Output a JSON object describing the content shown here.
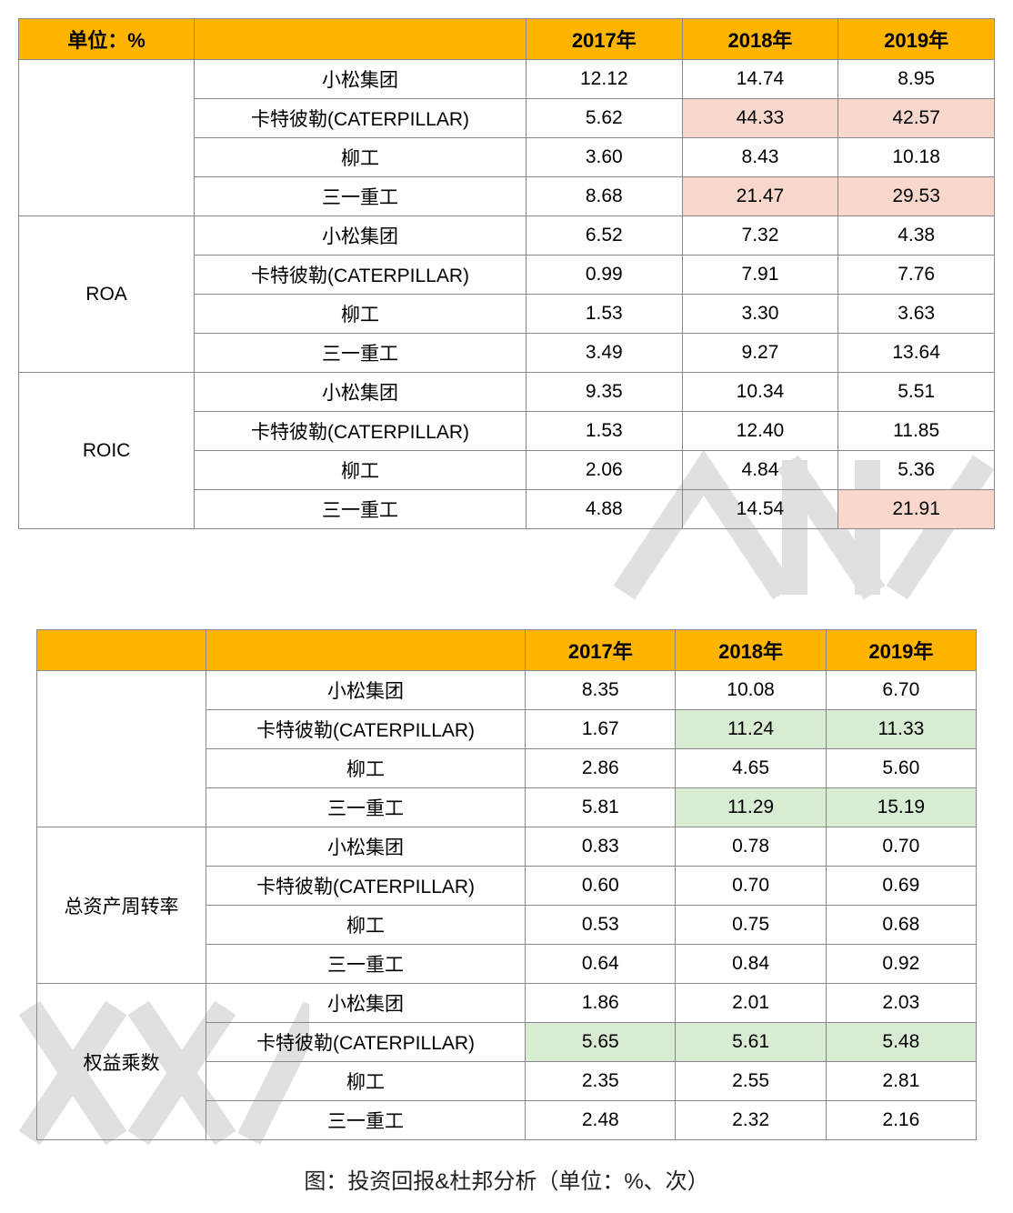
{
  "colors": {
    "header_bg": "#ffb400",
    "highlight_pink": "#f8d7cd",
    "highlight_green": "#d8ebd3",
    "border": "#888888",
    "text": "#000000",
    "bg": "#ffffff"
  },
  "table1": {
    "headers": {
      "unit": "单位：%",
      "blank": "",
      "y2017": "2017年",
      "y2018": "2018年",
      "y2019": "2019年"
    },
    "groups": [
      {
        "metric": "",
        "rows": [
          {
            "company": "小松集团",
            "v": [
              "12.12",
              "14.74",
              "8.95"
            ],
            "hl": [
              false,
              false,
              false
            ]
          },
          {
            "company": "卡特彼勒(CATERPILLAR)",
            "v": [
              "5.62",
              "44.33",
              "42.57"
            ],
            "hl": [
              false,
              true,
              true
            ]
          },
          {
            "company": "柳工",
            "v": [
              "3.60",
              "8.43",
              "10.18"
            ],
            "hl": [
              false,
              false,
              false
            ]
          },
          {
            "company": "三一重工",
            "v": [
              "8.68",
              "21.47",
              "29.53"
            ],
            "hl": [
              false,
              true,
              true
            ]
          }
        ]
      },
      {
        "metric": "ROA",
        "rows": [
          {
            "company": "小松集团",
            "v": [
              "6.52",
              "7.32",
              "4.38"
            ],
            "hl": [
              false,
              false,
              false
            ]
          },
          {
            "company": "卡特彼勒(CATERPILLAR)",
            "v": [
              "0.99",
              "7.91",
              "7.76"
            ],
            "hl": [
              false,
              false,
              false
            ]
          },
          {
            "company": "柳工",
            "v": [
              "1.53",
              "3.30",
              "3.63"
            ],
            "hl": [
              false,
              false,
              false
            ]
          },
          {
            "company": "三一重工",
            "v": [
              "3.49",
              "9.27",
              "13.64"
            ],
            "hl": [
              false,
              false,
              false
            ]
          }
        ]
      },
      {
        "metric": "ROIC",
        "rows": [
          {
            "company": "小松集团",
            "v": [
              "9.35",
              "10.34",
              "5.51"
            ],
            "hl": [
              false,
              false,
              false
            ]
          },
          {
            "company": "卡特彼勒(CATERPILLAR)",
            "v": [
              "1.53",
              "12.40",
              "11.85"
            ],
            "hl": [
              false,
              false,
              false
            ]
          },
          {
            "company": "柳工",
            "v": [
              "2.06",
              "4.84",
              "5.36"
            ],
            "hl": [
              false,
              false,
              false
            ]
          },
          {
            "company": "三一重工",
            "v": [
              "4.88",
              "14.54",
              "21.91"
            ],
            "hl": [
              false,
              false,
              true
            ]
          }
        ]
      }
    ]
  },
  "table2": {
    "headers": {
      "blank1": "",
      "blank2": "",
      "y2017": "2017年",
      "y2018": "2018年",
      "y2019": "2019年"
    },
    "groups": [
      {
        "metric": "",
        "rows": [
          {
            "company": "小松集团",
            "v": [
              "8.35",
              "10.08",
              "6.70"
            ],
            "hl": [
              false,
              false,
              false
            ]
          },
          {
            "company": "卡特彼勒(CATERPILLAR)",
            "v": [
              "1.67",
              "11.24",
              "11.33"
            ],
            "hl": [
              false,
              true,
              true
            ]
          },
          {
            "company": "柳工",
            "v": [
              "2.86",
              "4.65",
              "5.60"
            ],
            "hl": [
              false,
              false,
              false
            ]
          },
          {
            "company": "三一重工",
            "v": [
              "5.81",
              "11.29",
              "15.19"
            ],
            "hl": [
              false,
              true,
              true
            ]
          }
        ]
      },
      {
        "metric": "总资产周转率",
        "rows": [
          {
            "company": "小松集团",
            "v": [
              "0.83",
              "0.78",
              "0.70"
            ],
            "hl": [
              false,
              false,
              false
            ]
          },
          {
            "company": "卡特彼勒(CATERPILLAR)",
            "v": [
              "0.60",
              "0.70",
              "0.69"
            ],
            "hl": [
              false,
              false,
              false
            ]
          },
          {
            "company": "柳工",
            "v": [
              "0.53",
              "0.75",
              "0.68"
            ],
            "hl": [
              false,
              false,
              false
            ]
          },
          {
            "company": "三一重工",
            "v": [
              "0.64",
              "0.84",
              "0.92"
            ],
            "hl": [
              false,
              false,
              false
            ]
          }
        ]
      },
      {
        "metric": "权益乘数",
        "rows": [
          {
            "company": "小松集团",
            "v": [
              "1.86",
              "2.01",
              "2.03"
            ],
            "hl": [
              false,
              false,
              false
            ]
          },
          {
            "company": "卡特彼勒(CATERPILLAR)",
            "v": [
              "5.65",
              "5.61",
              "5.48"
            ],
            "hl": [
              true,
              true,
              true
            ]
          },
          {
            "company": "柳工",
            "v": [
              "2.35",
              "2.55",
              "2.81"
            ],
            "hl": [
              false,
              false,
              false
            ]
          },
          {
            "company": "三一重工",
            "v": [
              "2.48",
              "2.32",
              "2.16"
            ],
            "hl": [
              false,
              false,
              false
            ]
          }
        ]
      }
    ]
  },
  "caption": "图：投资回报&杜邦分析（单位：%、次）"
}
